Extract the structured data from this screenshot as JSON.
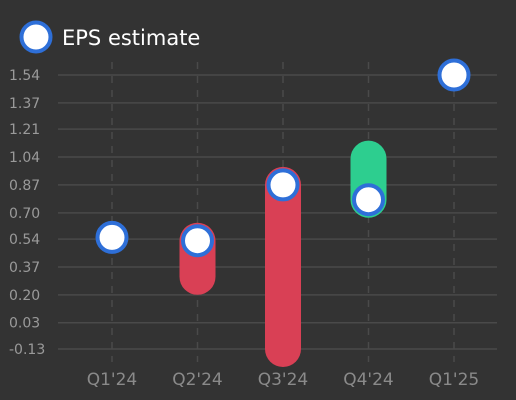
{
  "chart_data": {
    "type": "eps-surprise",
    "legend": [
      {
        "label": "EPS estimate",
        "marker": "white-circle",
        "border_color": "#2e6fd8"
      }
    ],
    "categories": [
      "Q1'24",
      "Q2'24",
      "Q3'24",
      "Q4'24",
      "Q1'25"
    ],
    "estimate": [
      0.55,
      0.53,
      0.87,
      0.78,
      1.54
    ],
    "actual": [
      null,
      0.31,
      -0.13,
      1.03,
      null
    ],
    "y_ticks": [
      "1.54",
      "1.37",
      "1.21",
      "1.04",
      "0.87",
      "0.70",
      "0.54",
      "0.37",
      "0.20",
      "0.03",
      "-0.13"
    ],
    "ylim": [
      -0.13,
      1.54
    ],
    "grid": true,
    "legend_position": "top-left",
    "colors": {
      "background": "#333333",
      "grid": "#4a4a4a",
      "beat": "#2dce8f",
      "miss": "#d94055",
      "estimate_fill": "#ffffff",
      "estimate_border": "#2e6fd8"
    }
  }
}
